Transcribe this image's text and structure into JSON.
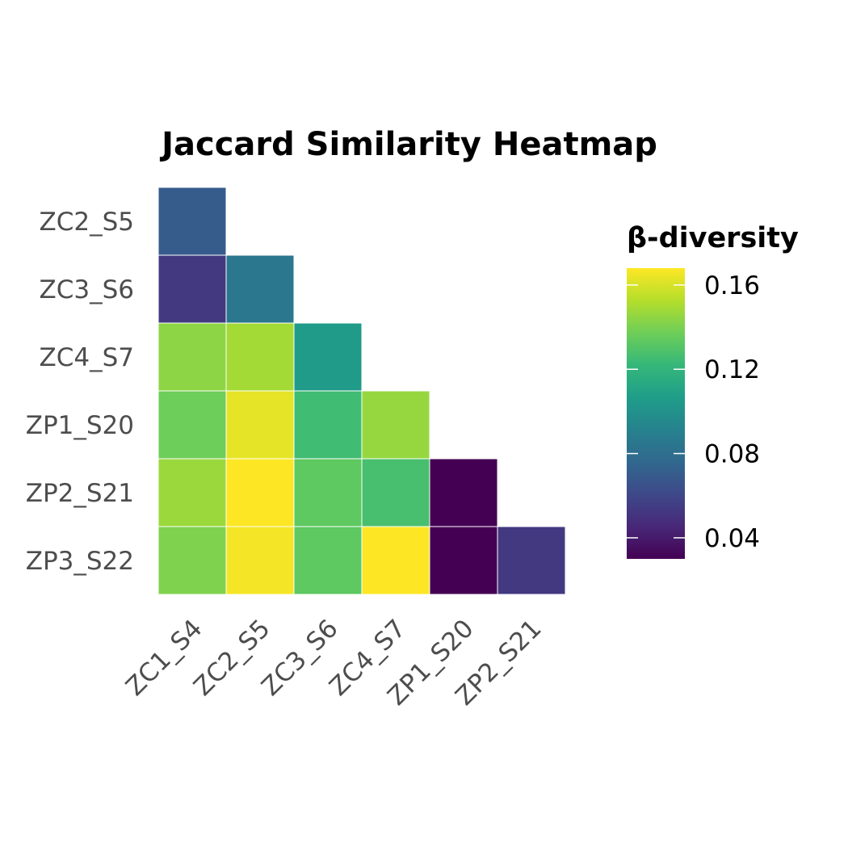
{
  "chart_data": {
    "type": "heatmap",
    "title": "Jaccard Similarity Heatmap",
    "xlabel": "",
    "ylabel": "",
    "x_categories": [
      "ZC1_S4",
      "ZC2_S5",
      "ZC3_S6",
      "ZC4_S7",
      "ZP1_S20",
      "ZP2_S21"
    ],
    "y_categories": [
      "ZC2_S5",
      "ZC3_S6",
      "ZC4_S7",
      "ZP1_S20",
      "ZP2_S21",
      "ZP3_S22"
    ],
    "values": [
      [
        0.07,
        null,
        null,
        null,
        null,
        null
      ],
      [
        0.053,
        0.085,
        null,
        null,
        null,
        null
      ],
      [
        0.144,
        0.149,
        0.105,
        null,
        null,
        null
      ],
      [
        0.137,
        0.163,
        0.125,
        0.146,
        null,
        null
      ],
      [
        0.147,
        0.168,
        0.133,
        0.127,
        0.03,
        null
      ],
      [
        0.141,
        0.166,
        0.133,
        0.168,
        0.03,
        0.053
      ]
    ],
    "legend": {
      "title": "β-diversity",
      "ticks": [
        0.04,
        0.08,
        0.12,
        0.16
      ],
      "tick_labels": [
        "0.04",
        "0.08",
        "0.12",
        "0.16"
      ],
      "range": [
        0.03,
        0.168
      ],
      "placement": "right"
    },
    "colormap": [
      "#440154",
      "#482878",
      "#3e4989",
      "#31688e",
      "#26828e",
      "#1f9e89",
      "#35b779",
      "#6ece58",
      "#b5de2b",
      "#fde725"
    ],
    "grid": false
  }
}
